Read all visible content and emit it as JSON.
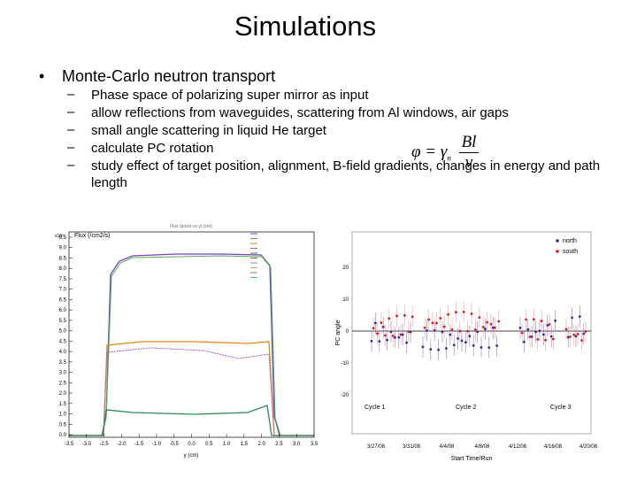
{
  "title": "Simulations",
  "bullet": "Monte-Carlo neutron transport",
  "sub_bullets": [
    "Phase space of polarizing super mirror as input",
    "allow reflections from waveguides, scattering from Al windows, air gaps",
    "small angle scattering in liquid He target",
    "calculate PC rotation",
    "study effect of target position, alignment, B-field gradients, changes in energy and path length"
  ],
  "formula": {
    "lhs": "φ = γ",
    "sub": "n",
    "numerator": "Bl",
    "denominator": "v"
  },
  "left_plot": {
    "title": "Flux (pos/x vs y) (cm)",
    "y_label": "Flux (/cm2/s)",
    "y_scale": "x10³",
    "x_label": "y (cm)",
    "y_ticks": [
      "0.0",
      "0.5",
      "1.0",
      "1.5",
      "2.0",
      "2.5",
      "3.0",
      "3.5",
      "4.0",
      "4.5",
      "5.0",
      "5.5",
      "6.0",
      "6.5",
      "7.0",
      "7.5",
      "8.0",
      "8.5",
      "9.0",
      "9.5"
    ],
    "x_ticks": [
      "-3.5",
      "-3.0",
      "-2.5",
      "-2.0",
      "-1.5",
      "-1.0",
      "-0.5",
      "0.0",
      "0.5",
      "1.0",
      "1.5",
      "2.0",
      "2.5",
      "3.0",
      "3.5"
    ]
  },
  "right_plot": {
    "y_label": "PC angle",
    "x_label": "Start Time/Run",
    "y_ticks": [
      "20",
      "10",
      "0",
      "-10",
      "-20"
    ],
    "x_ticks": [
      "3/27/08",
      "3/31/08",
      "4/4/08",
      "4/8/08",
      "4/12/08",
      "4/16/08",
      "4/20/08"
    ],
    "legend": [
      "north",
      "south"
    ],
    "cycles": [
      "Cycle 1",
      "Cycle 2",
      "Cycle 3"
    ]
  }
}
